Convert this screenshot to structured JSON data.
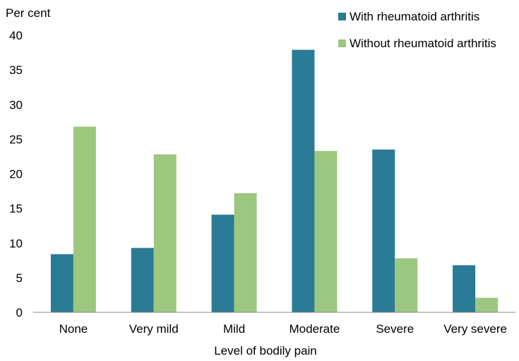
{
  "chart_data": {
    "type": "bar",
    "ylabel": "Per cent",
    "xlabel": "Level of bodily pain",
    "ylim": [
      0,
      40
    ],
    "yticks": [
      0,
      5,
      10,
      15,
      20,
      25,
      30,
      35,
      40
    ],
    "categories": [
      "None",
      "Very mild",
      "Mild",
      "Moderate",
      "Severe",
      "Very severe"
    ],
    "series": [
      {
        "name": "With rheumatoid arthritis",
        "color": "#2a7b95",
        "values": [
          8.4,
          9.3,
          14.1,
          37.9,
          23.5,
          6.8
        ]
      },
      {
        "name": "Without rheumatoid arthritis",
        "color": "#9cc77e",
        "values": [
          26.8,
          22.8,
          17.2,
          23.3,
          7.8,
          2.1
        ]
      }
    ],
    "legend": "top-right",
    "grid": false
  }
}
